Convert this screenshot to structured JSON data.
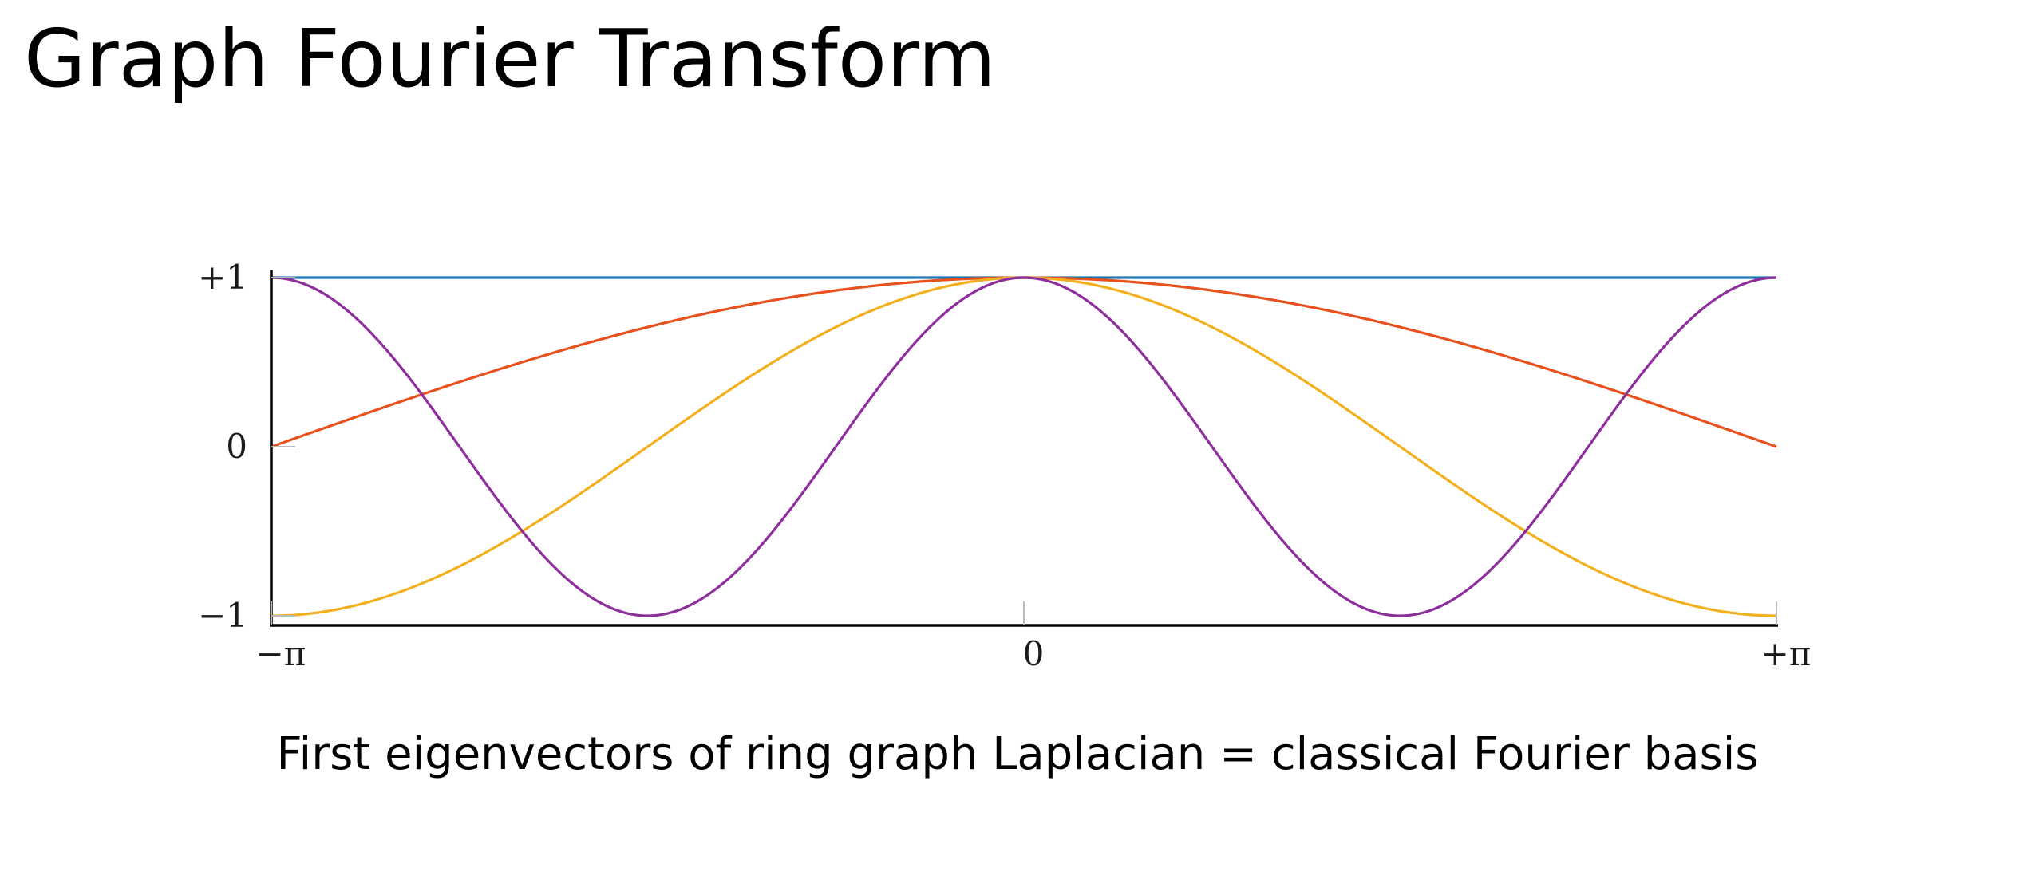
{
  "slide": {
    "title": "Graph Fourier Transform",
    "caption": "First eigenvectors of ring graph Laplacian = classical Fourier basis"
  },
  "chart_data": {
    "type": "line",
    "title": "",
    "xlabel": "",
    "ylabel": "",
    "xlim": [
      -3.14159,
      3.14159
    ],
    "ylim": [
      -1,
      1
    ],
    "x_ticks": [
      {
        "value": -3.14159,
        "label": "−π"
      },
      {
        "value": 0,
        "label": "0"
      },
      {
        "value": 3.14159,
        "label": "+π"
      }
    ],
    "y_ticks": [
      {
        "value": 1,
        "label": "+1"
      },
      {
        "value": 0,
        "label": "0"
      },
      {
        "value": -1,
        "label": "−1"
      }
    ],
    "grid": false,
    "legend": "none",
    "series": [
      {
        "function": "cos(0x)",
        "frequency": 0,
        "color": "#1f77b4"
      },
      {
        "function": "cos(x/2)",
        "frequency": 0.5,
        "color": "#e8501e"
      },
      {
        "function": "cos(x)",
        "frequency": 1,
        "color": "#f2b01e"
      },
      {
        "function": "cos(2x)",
        "frequency": 2,
        "color": "#8e2e9d"
      }
    ]
  }
}
